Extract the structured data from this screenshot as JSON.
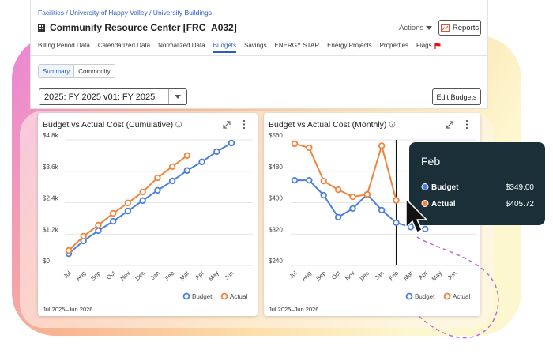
{
  "header": {
    "breadcrumb": "Facilities / University of Happy Valley / University Buildings",
    "title": "Community Resource Center [FRC_A032]",
    "actions": "Actions",
    "reports": "Reports"
  },
  "tabs": [
    "Billing Period Data",
    "Calendarized Data",
    "Normalized Data",
    "Budgets",
    "Savings",
    "ENERGY STAR",
    "Energy Projects",
    "Properties",
    "Flags"
  ],
  "active_tab": 3,
  "toggle": [
    "Summary",
    "Commodity"
  ],
  "dropdown": "2025: FY 2025 v01: FY 2025",
  "edit_button": "Edit Budgets",
  "chart_data": [
    {
      "type": "line",
      "title": "Budget vs Actual Cost (Cumulative)",
      "categories": [
        "Jul",
        "Aug",
        "Sep",
        "Oct",
        "Nov",
        "Dec",
        "Jan",
        "Feb",
        "Mar",
        "Apr",
        "May",
        "Jun"
      ],
      "series": [
        {
          "name": "Budget",
          "color": "#4a7fe0",
          "values": [
            0.45,
            0.94,
            1.33,
            1.69,
            2.08,
            2.48,
            2.87,
            3.23,
            3.63,
            3.96,
            4.35,
            4.68
          ]
        },
        {
          "name": "Actual",
          "color": "#f0843c",
          "values": [
            0.57,
            1.12,
            1.54,
            1.99,
            2.39,
            2.81,
            3.35,
            3.78,
            4.2,
            null,
            null,
            null
          ]
        }
      ],
      "ylim": [
        0,
        4.8
      ],
      "yticks": [
        {
          "value": 0,
          "label": "$0"
        },
        {
          "value": 1.2,
          "label": "$1.2k"
        },
        {
          "value": 2.4,
          "label": "$2.4k"
        },
        {
          "value": 3.6,
          "label": "$3.6k"
        },
        {
          "value": 4.8,
          "label": "$4.8k"
        }
      ],
      "grid": true,
      "footer": "Jul 2025–Jun 2026"
    },
    {
      "type": "line",
      "title": "Budget vs Actual Cost (Monthly)",
      "categories": [
        "Jul",
        "Aug",
        "Sep",
        "Oct",
        "Nov",
        "Dec",
        "Jan",
        "Feb",
        "Mar",
        "Apr",
        "May",
        "Jun"
      ],
      "series": [
        {
          "name": "Budget",
          "color": "#4a7fe0",
          "values": [
            457,
            457,
            419,
            363,
            385,
            421,
            381,
            349,
            338,
            333,
            null,
            null
          ]
        },
        {
          "name": "Actual",
          "color": "#f0843c",
          "values": [
            550,
            540,
            455,
            433,
            415,
            421,
            545,
            405.72,
            null,
            null,
            null,
            null
          ]
        }
      ],
      "ylim": [
        240,
        560
      ],
      "yticks": [
        {
          "value": 240,
          "label": "$240"
        },
        {
          "value": 320,
          "label": "$320"
        },
        {
          "value": 400,
          "label": "$400"
        },
        {
          "value": 480,
          "label": "$480"
        },
        {
          "value": 560,
          "label": "$560"
        }
      ],
      "grid": true,
      "footer": "Jul 2025–Jun 2026"
    }
  ],
  "tooltip": {
    "title": "Feb",
    "rows": [
      {
        "name": "Budget",
        "value": "$349.00"
      },
      {
        "name": "Actual",
        "value": "$405.72"
      }
    ]
  }
}
